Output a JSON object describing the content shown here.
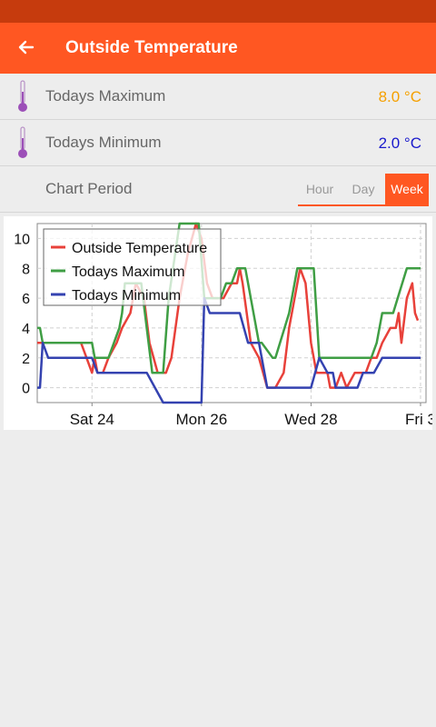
{
  "app_bar": {
    "title": "Outside Temperature",
    "back_icon": "arrow-left-icon"
  },
  "rows": [
    {
      "label": "Todays Maximum",
      "value": "8.0 °C",
      "color": "#f5a000",
      "icon": "thermometer-icon"
    },
    {
      "label": "Todays Minimum",
      "value": "2.0 °C",
      "color": "#1a1acc",
      "icon": "thermometer-icon"
    }
  ],
  "period": {
    "label": "Chart Period",
    "tabs": [
      "Hour",
      "Day",
      "Week"
    ],
    "selected": "Week"
  },
  "colors": {
    "accent": "#ff5722",
    "status_bar": "#c63b0d",
    "icon": "#9c4fb8"
  },
  "chart_data": {
    "type": "line",
    "x_unit": "days",
    "x_tick_labels": [
      "Sat 24",
      "Mon 26",
      "Wed 28",
      "Fri 3"
    ],
    "x_tick_positions": [
      1,
      3,
      5,
      7
    ],
    "y_tick_labels": [
      "0",
      "2",
      "4",
      "6",
      "8",
      "10"
    ],
    "ylim": [
      -1,
      11
    ],
    "xlim": [
      0,
      7.1
    ],
    "grid": true,
    "legend_position": "top-left",
    "series": [
      {
        "name": "Outside Temperature",
        "color": "#e8413a",
        "x": [
          0,
          0.5,
          0.6,
          0.8,
          0.9,
          1.0,
          1.05,
          1.1,
          1.2,
          1.3,
          1.45,
          1.55,
          1.7,
          1.8,
          1.95,
          2.05,
          2.2,
          2.35,
          2.45,
          2.6,
          2.75,
          2.9,
          3.0,
          3.1,
          3.2,
          3.4,
          3.55,
          3.65,
          3.7,
          3.75,
          3.9,
          4.05,
          4.2,
          4.35,
          4.5,
          4.6,
          4.8,
          4.9,
          5.0,
          5.1,
          5.3,
          5.35,
          5.45,
          5.55,
          5.65,
          5.8,
          5.85,
          5.9,
          6.0,
          6.1,
          6.2,
          6.3,
          6.45,
          6.55,
          6.6,
          6.65,
          6.75,
          6.85,
          6.9,
          6.95
        ],
        "y": [
          3,
          3,
          3,
          3,
          2,
          1,
          2,
          1,
          1,
          2,
          3,
          4,
          5,
          7,
          6,
          3,
          1,
          1,
          2,
          6,
          9,
          11,
          10,
          7,
          6,
          6,
          7,
          7,
          8,
          7,
          3,
          2,
          0,
          0,
          1,
          4,
          8,
          7,
          3,
          1,
          1,
          0,
          0,
          1,
          0,
          1,
          1,
          1,
          1,
          2,
          2,
          3,
          4,
          4,
          5,
          3,
          6,
          7,
          5,
          4.5
        ]
      },
      {
        "name": "Todays Maximum",
        "color": "#3f9e44",
        "x": [
          0,
          0.05,
          0.1,
          0.2,
          0.6,
          1.0,
          1.05,
          1.3,
          1.4,
          1.5,
          1.55,
          1.6,
          1.7,
          1.75,
          1.9,
          2.1,
          2.3,
          2.4,
          2.6,
          2.7,
          2.95,
          3.05,
          3.1,
          3.35,
          3.45,
          3.55,
          3.65,
          3.7,
          3.75,
          3.8,
          4.05,
          4.1,
          4.3,
          4.35,
          4.6,
          4.75,
          4.85,
          5.05,
          5.15,
          5.35,
          5.8,
          6.1,
          6.2,
          6.3,
          6.5,
          6.75,
          6.85,
          7.0
        ],
        "y": [
          4,
          4,
          3,
          3,
          3,
          3,
          2,
          2,
          3,
          4,
          5,
          7,
          7,
          7,
          7,
          1,
          1,
          6,
          11,
          11,
          11,
          6,
          6,
          6,
          7,
          7,
          8,
          8,
          8,
          8,
          3,
          3,
          2,
          2,
          5,
          8,
          8,
          8,
          2,
          2,
          2,
          2,
          3,
          5,
          5,
          8,
          8,
          8
        ]
      },
      {
        "name": "Todays Minimum",
        "color": "#3442b0",
        "x": [
          0,
          0.05,
          0.1,
          0.2,
          1.0,
          1.1,
          1.6,
          1.75,
          2.0,
          2.15,
          2.3,
          2.5,
          3.0,
          3.05,
          3.15,
          3.7,
          3.85,
          4.05,
          4.2,
          4.45,
          4.6,
          5.0,
          5.15,
          5.3,
          5.4,
          5.45,
          5.55,
          5.8,
          5.85,
          5.95,
          6.05,
          6.15,
          6.3,
          6.55,
          6.75,
          7.0
        ],
        "y": [
          0,
          0,
          3,
          2,
          2,
          1,
          1,
          1,
          1,
          0,
          -1,
          -1,
          -1,
          6,
          5,
          5,
          3,
          3,
          0,
          0,
          0,
          0,
          2,
          1,
          1,
          0,
          0,
          0,
          0,
          1,
          1,
          1,
          2,
          2,
          2,
          2
        ]
      }
    ]
  }
}
